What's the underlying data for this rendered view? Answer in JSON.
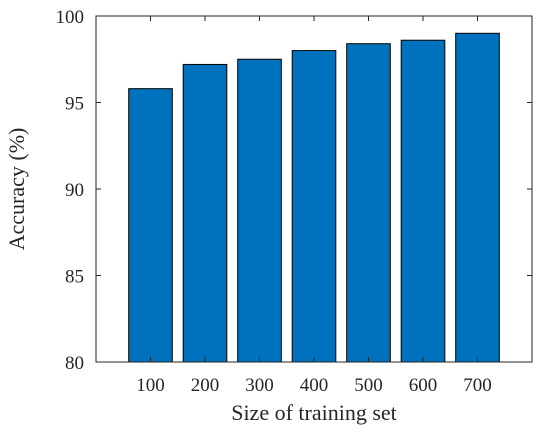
{
  "chart_data": {
    "type": "bar",
    "title": "",
    "xlabel": "Size of training set",
    "ylabel": "Accuracy (%)",
    "categories": [
      "100",
      "200",
      "300",
      "400",
      "500",
      "600",
      "700"
    ],
    "values": [
      95.8,
      97.2,
      97.5,
      98.0,
      98.4,
      98.6,
      99.0
    ],
    "ylim": [
      80,
      100
    ],
    "yticks": [
      "80",
      "85",
      "90",
      "95",
      "100"
    ],
    "grid": false,
    "legend": "none",
    "colors": {
      "bar": "#0072BD",
      "axis": "#262626"
    }
  }
}
